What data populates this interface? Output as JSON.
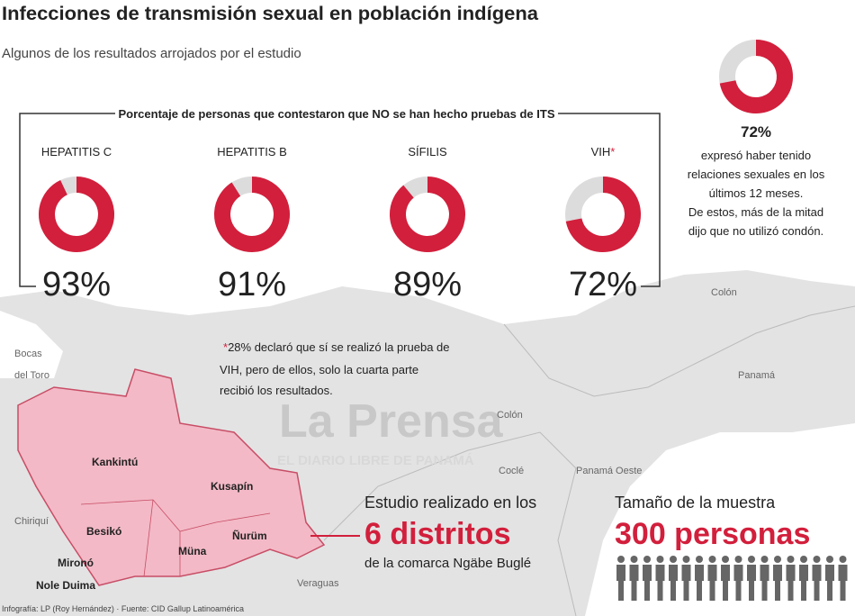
{
  "header": {
    "title": "Infecciones de transmisión sexual en población indígena",
    "subtitle": "Algunos de los resultados arrojados por el estudio"
  },
  "panel_label": "Porcentaje de personas que contestaron que NO se han hecho pruebas de ITS",
  "chart_data": [
    {
      "type": "pie",
      "title": "HEPATITIS C",
      "values": [
        93
      ],
      "value_labels": [
        "93%"
      ],
      "color": "#d21f3c"
    },
    {
      "type": "pie",
      "title": "HEPATITIS B",
      "values": [
        91
      ],
      "value_labels": [
        "91%"
      ],
      "color": "#d21f3c"
    },
    {
      "type": "pie",
      "title": "SÍFILIS",
      "values": [
        89
      ],
      "value_labels": [
        "89%"
      ],
      "color": "#d21f3c"
    },
    {
      "type": "pie",
      "title": "VIH",
      "note_marker": "*",
      "values": [
        72
      ],
      "value_labels": [
        "72%"
      ],
      "color": "#d21f3c"
    },
    {
      "type": "pie",
      "values": [
        72
      ],
      "value_labels": [
        "72%"
      ],
      "color": "#d21f3c",
      "description": [
        "expresó haber tenido",
        "relaciones sexuales en los",
        "últimos 12 meses.",
        "De estos, más de la mitad",
        "dijo que no utilizó condón."
      ]
    }
  ],
  "note": {
    "marker": "*",
    "lines": [
      "28% declaró que sí se realizó la prueba de",
      "VIH, pero de ellos, solo la cuarta parte",
      "recibió los resultados."
    ]
  },
  "watermark": {
    "name": "La Prensa",
    "tagline": "EL DIARIO LIBRE DE PANAMÁ"
  },
  "map": {
    "places": [
      "Bocas",
      "del Toro",
      "Colón",
      "Colón",
      "Panamá",
      "Coclé",
      "Panamá Oeste",
      "Chiriquí",
      "Veraguas"
    ],
    "districts": [
      "Kankintú",
      "Kusapín",
      "Besikó",
      "Mironó",
      "Nole Duima",
      "Müna",
      "Ñurüm"
    ]
  },
  "study": {
    "line1": "Estudio realizado en los",
    "highlight": "6 distritos",
    "line2": "de la comarca Ngäbe Buglé"
  },
  "sample": {
    "line1": "Tamaño de la muestra",
    "highlight": "300 personas"
  },
  "footer": "Infografía: LP (Roy Hernández) · Fuente: CID Gallup Latinoamérica"
}
